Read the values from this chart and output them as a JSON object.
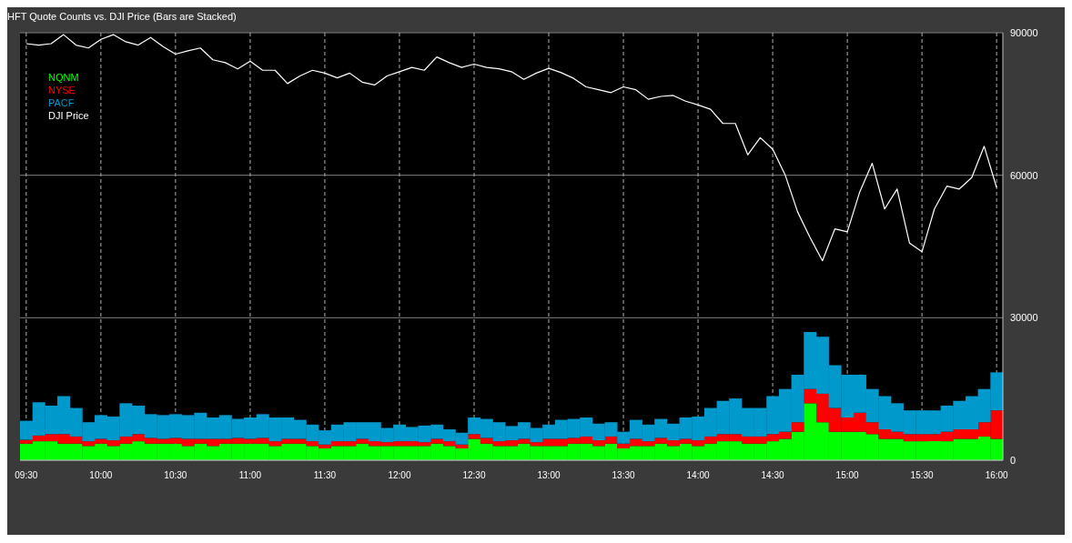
{
  "chart_data": {
    "type": "bar",
    "title": "HFT Quote Counts vs. DJI Price  (Bars are Stacked)",
    "stacked": true,
    "categories": [
      "09:30",
      null,
      null,
      null,
      null,
      null,
      "10:00",
      null,
      null,
      null,
      null,
      null,
      "10:30",
      null,
      null,
      null,
      null,
      null,
      "11:00",
      null,
      null,
      null,
      null,
      null,
      "11:30",
      null,
      null,
      null,
      null,
      null,
      "12:00",
      null,
      null,
      null,
      null,
      null,
      "12:30",
      null,
      null,
      null,
      null,
      null,
      "13:00",
      null,
      null,
      null,
      null,
      null,
      "13:30",
      null,
      null,
      null,
      null,
      null,
      "14:00",
      null,
      null,
      null,
      null,
      null,
      "14:30",
      null,
      null,
      null,
      null,
      null,
      "15:00",
      null,
      null,
      null,
      null,
      null,
      "15:30",
      null,
      null,
      null,
      null,
      null,
      "16:00"
    ],
    "series": [
      {
        "name": "NQNM",
        "color": "#00ff00",
        "values": [
          3500,
          4000,
          4000,
          3500,
          3500,
          3000,
          3500,
          3000,
          3500,
          4000,
          3500,
          3500,
          3500,
          3000,
          3500,
          3000,
          3500,
          3500,
          3500,
          3500,
          3000,
          3500,
          3500,
          3000,
          2500,
          3000,
          3000,
          3500,
          3000,
          3000,
          3000,
          3000,
          3000,
          3500,
          3000,
          2500,
          4500,
          3500,
          3000,
          3000,
          3500,
          3000,
          3000,
          3000,
          3500,
          3500,
          3000,
          3500,
          2500,
          3000,
          3000,
          3500,
          3000,
          3500,
          3000,
          3500,
          4000,
          4000,
          3500,
          3500,
          4000,
          4500,
          6000,
          12000,
          8000,
          6000,
          6000,
          6000,
          5500,
          4500,
          4500,
          4000,
          4000,
          4000,
          4000,
          4500,
          4500,
          5000,
          4500
        ]
      },
      {
        "name": "NYSE",
        "color": "#ff0000",
        "values": [
          800,
          1200,
          1500,
          2000,
          1500,
          1000,
          1000,
          1200,
          1500,
          1500,
          1200,
          1000,
          1200,
          1500,
          1000,
          1500,
          1000,
          1200,
          1000,
          1200,
          1000,
          1000,
          1000,
          1000,
          800,
          1000,
          1000,
          1000,
          1000,
          800,
          1000,
          1000,
          800,
          1000,
          1000,
          800,
          1000,
          1200,
          1000,
          1200,
          1000,
          800,
          1500,
          1500,
          1200,
          1500,
          1200,
          1500,
          1000,
          1500,
          1000,
          1200,
          1200,
          1000,
          1200,
          1500,
          1500,
          1500,
          1500,
          1500,
          1500,
          1500,
          2000,
          3000,
          6000,
          5000,
          3000,
          4000,
          2500,
          2000,
          1500,
          1500,
          1500,
          1500,
          2000,
          2000,
          2000,
          3000,
          6000
        ]
      },
      {
        "name": "PACF",
        "color": "#0099cc",
        "values": [
          4000,
          7000,
          6000,
          8000,
          6000,
          4000,
          5000,
          5000,
          7000,
          6000,
          5000,
          5000,
          5000,
          5000,
          5500,
          4500,
          5000,
          4000,
          4500,
          5000,
          5000,
          4500,
          4000,
          3500,
          3000,
          3500,
          4000,
          3500,
          4000,
          3000,
          3500,
          3000,
          3500,
          3000,
          2500,
          2500,
          3500,
          4000,
          4000,
          3000,
          3500,
          3000,
          3000,
          4000,
          4000,
          4000,
          3500,
          3000,
          2500,
          4000,
          3500,
          4000,
          3500,
          4500,
          5000,
          6000,
          7000,
          7500,
          6000,
          6000,
          8000,
          9000,
          10000,
          12000,
          12000,
          9000,
          9000,
          8000,
          7000,
          7000,
          6000,
          5000,
          5000,
          5000,
          5500,
          6000,
          7000,
          7000,
          8000
        ]
      },
      {
        "name": "DJI Price",
        "type": "line",
        "color": "#ffffff",
        "values": [
          87700,
          87400,
          87700,
          89600,
          87400,
          86800,
          88600,
          89600,
          88100,
          87400,
          89000,
          87100,
          85500,
          86200,
          86800,
          84300,
          83700,
          82400,
          84000,
          82100,
          82100,
          79300,
          80900,
          82100,
          81500,
          80500,
          81500,
          79600,
          79000,
          80900,
          81800,
          82700,
          82100,
          84900,
          83700,
          82700,
          83400,
          82700,
          82400,
          81800,
          80200,
          81500,
          82500,
          81600,
          80400,
          78600,
          78000,
          77400,
          78600,
          78000,
          76000,
          76600,
          76800,
          75600,
          74800,
          73900,
          70900,
          70900,
          64300,
          67900,
          65500,
          60100,
          52300,
          46900,
          42000,
          48700,
          48100,
          56500,
          62500,
          52900,
          57100,
          45700,
          43900,
          52900,
          57700,
          57100,
          59500,
          66100,
          57400
        ]
      }
    ],
    "ylim": [
      0,
      90000
    ],
    "yticks": [
      0,
      30000,
      60000,
      90000
    ],
    "grid": true,
    "legend": "top left",
    "marker": "none",
    "line_style": "solid"
  }
}
